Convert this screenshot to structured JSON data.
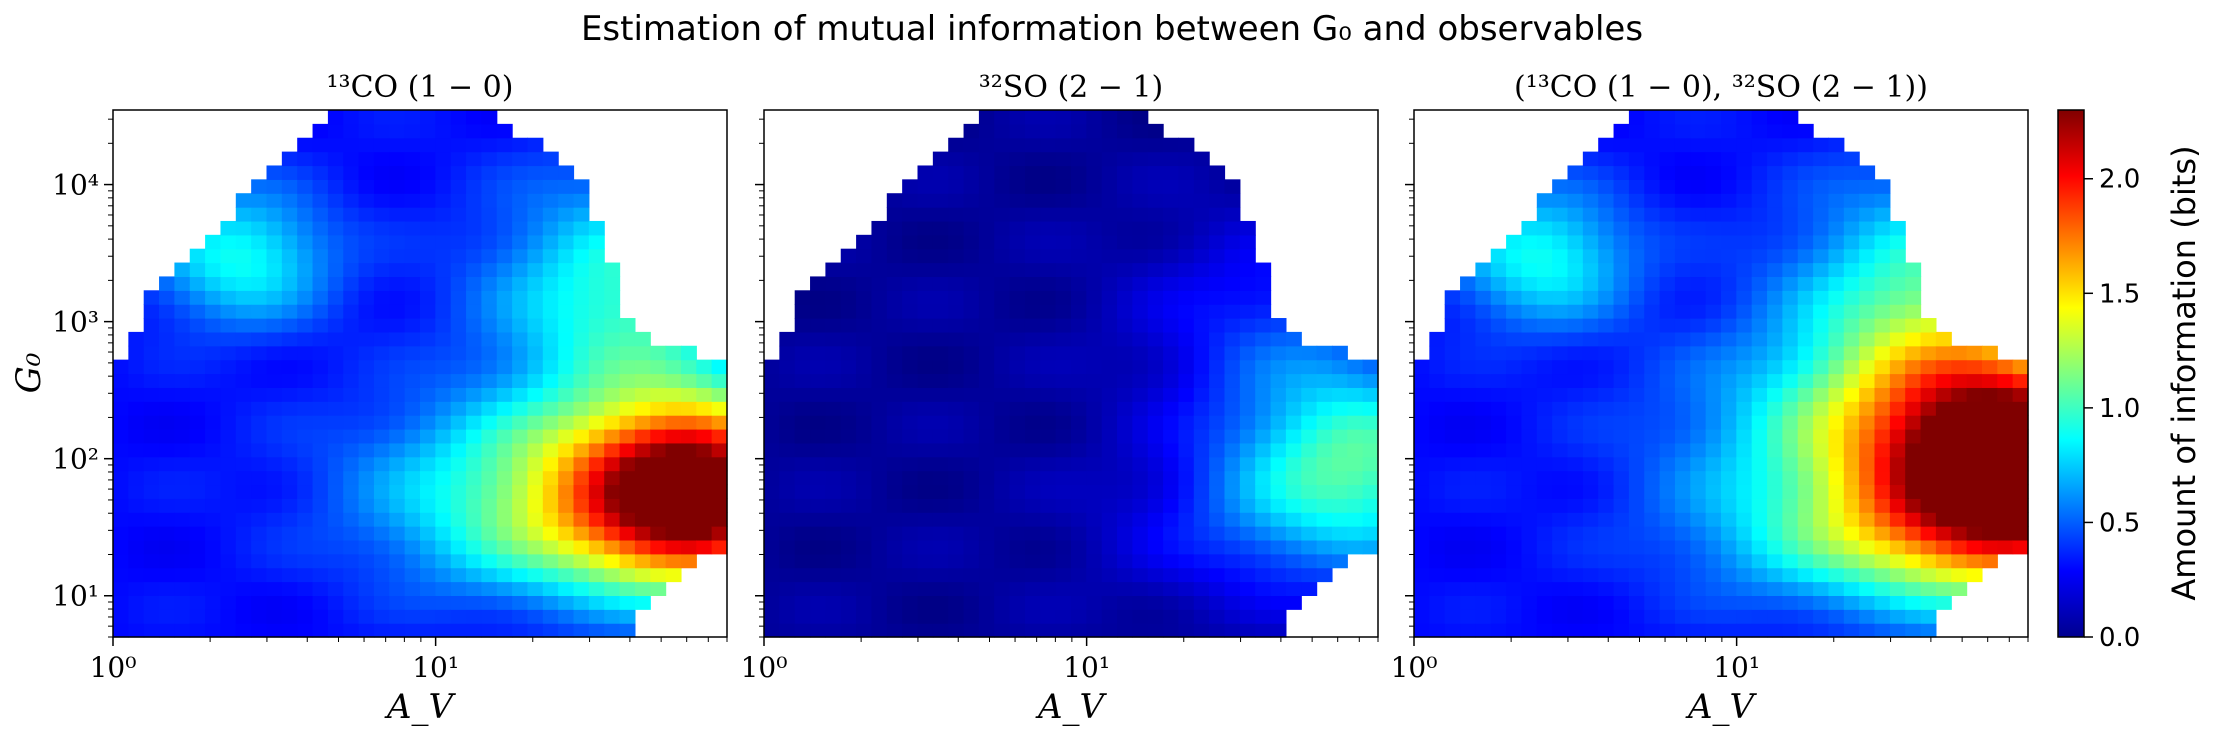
{
  "chart_data": {
    "title": "Estimation of mutual information between G₀ and observables",
    "type": "heatmap",
    "x_scale": "log",
    "y_scale": "log",
    "xlim": [
      1,
      80
    ],
    "ylim": [
      5,
      35000
    ],
    "xticks": [
      {
        "value": 1,
        "label": "10⁰"
      },
      {
        "value": 10,
        "label": "10¹"
      }
    ],
    "yticks": [
      {
        "value": 10,
        "label": "10¹"
      },
      {
        "value": 100,
        "label": "10²"
      },
      {
        "value": 1000,
        "label": "10³"
      },
      {
        "value": 10000,
        "label": "10⁴"
      }
    ],
    "xlabel": "A_V",
    "ylabel": "G₀",
    "colormap": "jet",
    "colorbar": {
      "label": "Amount of information (bits)",
      "range": [
        0,
        2.3
      ],
      "ticks": [
        {
          "value": 0.0,
          "label": "0.0"
        },
        {
          "value": 0.5,
          "label": "0.5"
        },
        {
          "value": 1.0,
          "label": "1.0"
        },
        {
          "value": 1.5,
          "label": "1.5"
        },
        {
          "value": 2.0,
          "label": "2.0"
        }
      ]
    },
    "panels": [
      {
        "title": "¹³CO (1 − 0)",
        "background_level": 0.3,
        "features": [
          {
            "ax": 65,
            "g0": 55,
            "sa": 0.25,
            "sg": 0.45,
            "amp": 1.7
          },
          {
            "ax": 30,
            "g0": 90,
            "sa": 0.45,
            "sg": 0.4,
            "amp": 0.7
          },
          {
            "ax": 40,
            "g0": 1500,
            "sa": 0.3,
            "sg": 0.6,
            "amp": 0.7
          },
          {
            "ax": 28,
            "g0": 25,
            "sa": 0.4,
            "sg": 0.35,
            "amp": 0.55
          },
          {
            "ax": 2.5,
            "g0": 3000,
            "sa": 0.2,
            "sg": 0.35,
            "amp": 0.6
          }
        ]
      },
      {
        "title": "³²SO (2 − 1)",
        "background_level": 0.06,
        "features": [
          {
            "ax": 70,
            "g0": 100,
            "sa": 0.3,
            "sg": 0.5,
            "amp": 0.9
          },
          {
            "ax": 40,
            "g0": 1000,
            "sa": 0.3,
            "sg": 0.5,
            "amp": 0.3
          },
          {
            "ax": 40,
            "g0": 30,
            "sa": 0.35,
            "sg": 0.4,
            "amp": 0.25
          }
        ]
      },
      {
        "title": "(¹³CO (1 − 0), ³²SO (2 − 1))",
        "background_level": 0.3,
        "features": [
          {
            "ax": 75,
            "g0": 80,
            "sa": 0.3,
            "sg": 0.55,
            "amp": 2.0
          },
          {
            "ax": 35,
            "g0": 150,
            "sa": 0.45,
            "sg": 0.5,
            "amp": 0.8
          },
          {
            "ax": 40,
            "g0": 1500,
            "sa": 0.3,
            "sg": 0.6,
            "amp": 0.7
          },
          {
            "ax": 28,
            "g0": 25,
            "sa": 0.4,
            "sg": 0.35,
            "amp": 0.55
          },
          {
            "ax": 2.5,
            "g0": 3000,
            "sa": 0.2,
            "sg": 0.35,
            "amp": 0.6
          }
        ]
      }
    ]
  }
}
